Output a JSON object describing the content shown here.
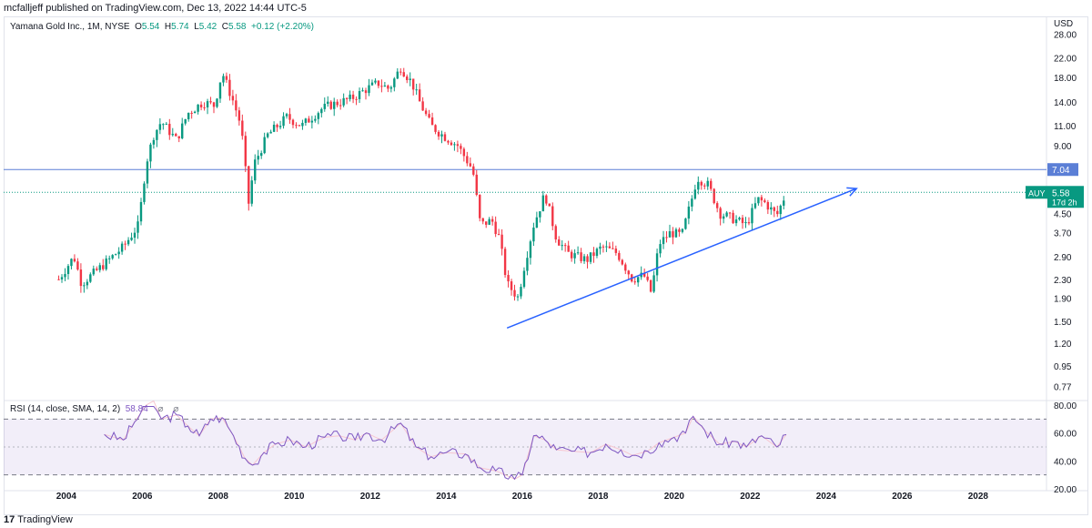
{
  "header": {
    "published": "mcfalljeff published on TradingView.com, Dec 13, 2022 14:44 UTC-5"
  },
  "legend": {
    "symbol": "Yamana Gold Inc., 1M, NYSE",
    "o_label": "O",
    "o_value": "5.54",
    "h_label": "H",
    "h_value": "5.74",
    "l_label": "L",
    "l_value": "5.42",
    "c_label": "C",
    "c_value": "5.58",
    "change": "+0.12 (+2.20%)"
  },
  "rsi_legend": {
    "label": "RSI (14, close, SMA, 14, 2)",
    "value": "58.84",
    "icon1": "⌀",
    "icon2": "⌀"
  },
  "brand": {
    "logo": "17",
    "name": "TradingView"
  },
  "colors": {
    "up": "#089981",
    "down": "#f23645",
    "level": "#5b7fd6",
    "trend": "#2962ff",
    "rsi": "#7e57c2",
    "rsi_band": "rgba(126,87,194,0.10)",
    "current": "#089981"
  },
  "chart_data": {
    "type": "candlestick",
    "currency": "USD",
    "scale": "log",
    "ylim": [
      0.7,
      30
    ],
    "y_ticks": [
      "28.00",
      "22.00",
      "18.00",
      "14.00",
      "11.00",
      "9.00",
      "7.00",
      "4.50",
      "3.70",
      "2.90",
      "2.30",
      "1.90",
      "1.50",
      "1.20",
      "0.95",
      "0.77"
    ],
    "x_ticks": [
      "2004",
      "2006",
      "2008",
      "2010",
      "2012",
      "2014",
      "2016",
      "2018",
      "2020",
      "2022",
      "2024",
      "2026",
      "2028"
    ],
    "xlim": [
      2002.35,
      2029.8
    ],
    "horizontal_level": {
      "value": 7.04,
      "label": "7.04"
    },
    "current_price": {
      "symbol": "AUY",
      "value": 5.58,
      "label": "5.58",
      "countdown": "17d 2h"
    },
    "trendline": {
      "from": {
        "x": 2015.6,
        "y": 1.4
      },
      "to": {
        "x": 2024.8,
        "y": 5.8
      },
      "arrow": true
    },
    "monthly_closes": [
      {
        "date": "2003.8",
        "close": 2.3
      },
      {
        "date": "2004.2",
        "close": 2.9
      },
      {
        "date": "2004.4",
        "close": 2.2
      },
      {
        "date": "2004.9",
        "close": 2.6
      },
      {
        "date": "2005.5",
        "close": 3.2
      },
      {
        "date": "2005.9",
        "close": 4.0
      },
      {
        "date": "2006.1",
        "close": 7.5
      },
      {
        "date": "2006.3",
        "close": 10.0
      },
      {
        "date": "2006.5",
        "close": 11.5
      },
      {
        "date": "2006.9",
        "close": 9.5
      },
      {
        "date": "2007.2",
        "close": 12.5
      },
      {
        "date": "2007.6",
        "close": 14.0
      },
      {
        "date": "2007.9",
        "close": 13.5
      },
      {
        "date": "2008.1",
        "close": 19.0
      },
      {
        "date": "2008.4",
        "close": 14.0
      },
      {
        "date": "2008.6",
        "close": 11.0
      },
      {
        "date": "2008.8",
        "close": 5.0
      },
      {
        "date": "2008.95",
        "close": 7.5
      },
      {
        "date": "2009.3",
        "close": 10.0
      },
      {
        "date": "2009.8",
        "close": 12.0
      },
      {
        "date": "2010.2",
        "close": 11.0
      },
      {
        "date": "2010.7",
        "close": 13.0
      },
      {
        "date": "2010.9",
        "close": 13.5
      },
      {
        "date": "2011.5",
        "close": 14.5
      },
      {
        "date": "2011.9",
        "close": 16.0
      },
      {
        "date": "2012.2",
        "close": 17.0
      },
      {
        "date": "2012.5",
        "close": 16.0
      },
      {
        "date": "2012.8",
        "close": 20.0
      },
      {
        "date": "2013.1",
        "close": 17.0
      },
      {
        "date": "2013.3",
        "close": 14.0
      },
      {
        "date": "2013.6",
        "close": 11.0
      },
      {
        "date": "2013.9",
        "close": 10.0
      },
      {
        "date": "2014.3",
        "close": 9.0
      },
      {
        "date": "2014.7",
        "close": 7.0
      },
      {
        "date": "2014.9",
        "close": 4.0
      },
      {
        "date": "2015.2",
        "close": 4.2
      },
      {
        "date": "2015.4",
        "close": 3.5
      },
      {
        "date": "2015.6",
        "close": 2.2
      },
      {
        "date": "2015.9",
        "close": 1.9
      },
      {
        "date": "2016.0",
        "close": 2.4
      },
      {
        "date": "2016.3",
        "close": 4.0
      },
      {
        "date": "2016.6",
        "close": 5.5
      },
      {
        "date": "2016.9",
        "close": 3.5
      },
      {
        "date": "2017.2",
        "close": 3.0
      },
      {
        "date": "2017.7",
        "close": 2.8
      },
      {
        "date": "2018.1",
        "close": 3.2
      },
      {
        "date": "2018.5",
        "close": 3.0
      },
      {
        "date": "2018.9",
        "close": 2.3
      },
      {
        "date": "2019.2",
        "close": 2.4
      },
      {
        "date": "2019.4",
        "close": 2.0
      },
      {
        "date": "2019.6",
        "close": 3.3
      },
      {
        "date": "2019.9",
        "close": 3.7
      },
      {
        "date": "2020.2",
        "close": 3.6
      },
      {
        "date": "2020.5",
        "close": 5.5
      },
      {
        "date": "2020.6",
        "close": 6.5
      },
      {
        "date": "2020.9",
        "close": 6.0
      },
      {
        "date": "2021.2",
        "close": 4.5
      },
      {
        "date": "2021.5",
        "close": 4.3
      },
      {
        "date": "2021.9",
        "close": 4.0
      },
      {
        "date": "2022.2",
        "close": 5.2
      },
      {
        "date": "2022.4",
        "close": 5.0
      },
      {
        "date": "2022.7",
        "close": 4.4
      },
      {
        "date": "2022.95",
        "close": 5.58
      }
    ],
    "rsi": {
      "ylim": [
        20,
        80
      ],
      "y_ticks": [
        "80.00",
        "60.00",
        "40.00",
        "20.00"
      ],
      "band": [
        30,
        70
      ],
      "mid": 50,
      "points": [
        {
          "date": "2005.0",
          "value": 59
        },
        {
          "date": "2005.5",
          "value": 55
        },
        {
          "date": "2005.8",
          "value": 68
        },
        {
          "date": "2006.1",
          "value": 80
        },
        {
          "date": "2006.3",
          "value": 83
        },
        {
          "date": "2006.5",
          "value": 70
        },
        {
          "date": "2006.9",
          "value": 73
        },
        {
          "date": "2007.2",
          "value": 65
        },
        {
          "date": "2007.5",
          "value": 58
        },
        {
          "date": "2007.8",
          "value": 70
        },
        {
          "date": "2008.1",
          "value": 71
        },
        {
          "date": "2008.4",
          "value": 58
        },
        {
          "date": "2008.7",
          "value": 42
        },
        {
          "date": "2008.9",
          "value": 37
        },
        {
          "date": "2009.2",
          "value": 46
        },
        {
          "date": "2009.5",
          "value": 52
        },
        {
          "date": "2009.9",
          "value": 55
        },
        {
          "date": "2010.3",
          "value": 50
        },
        {
          "date": "2010.8",
          "value": 57
        },
        {
          "date": "2011.2",
          "value": 58
        },
        {
          "date": "2011.6",
          "value": 55
        },
        {
          "date": "2011.9",
          "value": 60
        },
        {
          "date": "2012.3",
          "value": 55
        },
        {
          "date": "2012.8",
          "value": 67
        },
        {
          "date": "2013.2",
          "value": 50
        },
        {
          "date": "2013.6",
          "value": 43
        },
        {
          "date": "2014.0",
          "value": 46
        },
        {
          "date": "2014.5",
          "value": 45
        },
        {
          "date": "2014.9",
          "value": 35
        },
        {
          "date": "2015.3",
          "value": 33
        },
        {
          "date": "2015.8",
          "value": 27
        },
        {
          "date": "2016.0",
          "value": 30
        },
        {
          "date": "2016.3",
          "value": 58
        },
        {
          "date": "2016.6",
          "value": 55
        },
        {
          "date": "2016.9",
          "value": 48
        },
        {
          "date": "2017.3",
          "value": 47
        },
        {
          "date": "2017.8",
          "value": 46
        },
        {
          "date": "2018.2",
          "value": 52
        },
        {
          "date": "2018.6",
          "value": 48
        },
        {
          "date": "2018.9",
          "value": 44
        },
        {
          "date": "2019.3",
          "value": 47
        },
        {
          "date": "2019.6",
          "value": 53
        },
        {
          "date": "2020.0",
          "value": 57
        },
        {
          "date": "2020.3",
          "value": 60
        },
        {
          "date": "2020.5",
          "value": 72
        },
        {
          "date": "2020.8",
          "value": 62
        },
        {
          "date": "2021.2",
          "value": 52
        },
        {
          "date": "2021.6",
          "value": 54
        },
        {
          "date": "2021.9",
          "value": 50
        },
        {
          "date": "2022.3",
          "value": 58
        },
        {
          "date": "2022.7",
          "value": 50
        },
        {
          "date": "2022.95",
          "value": 58.84
        }
      ]
    }
  }
}
